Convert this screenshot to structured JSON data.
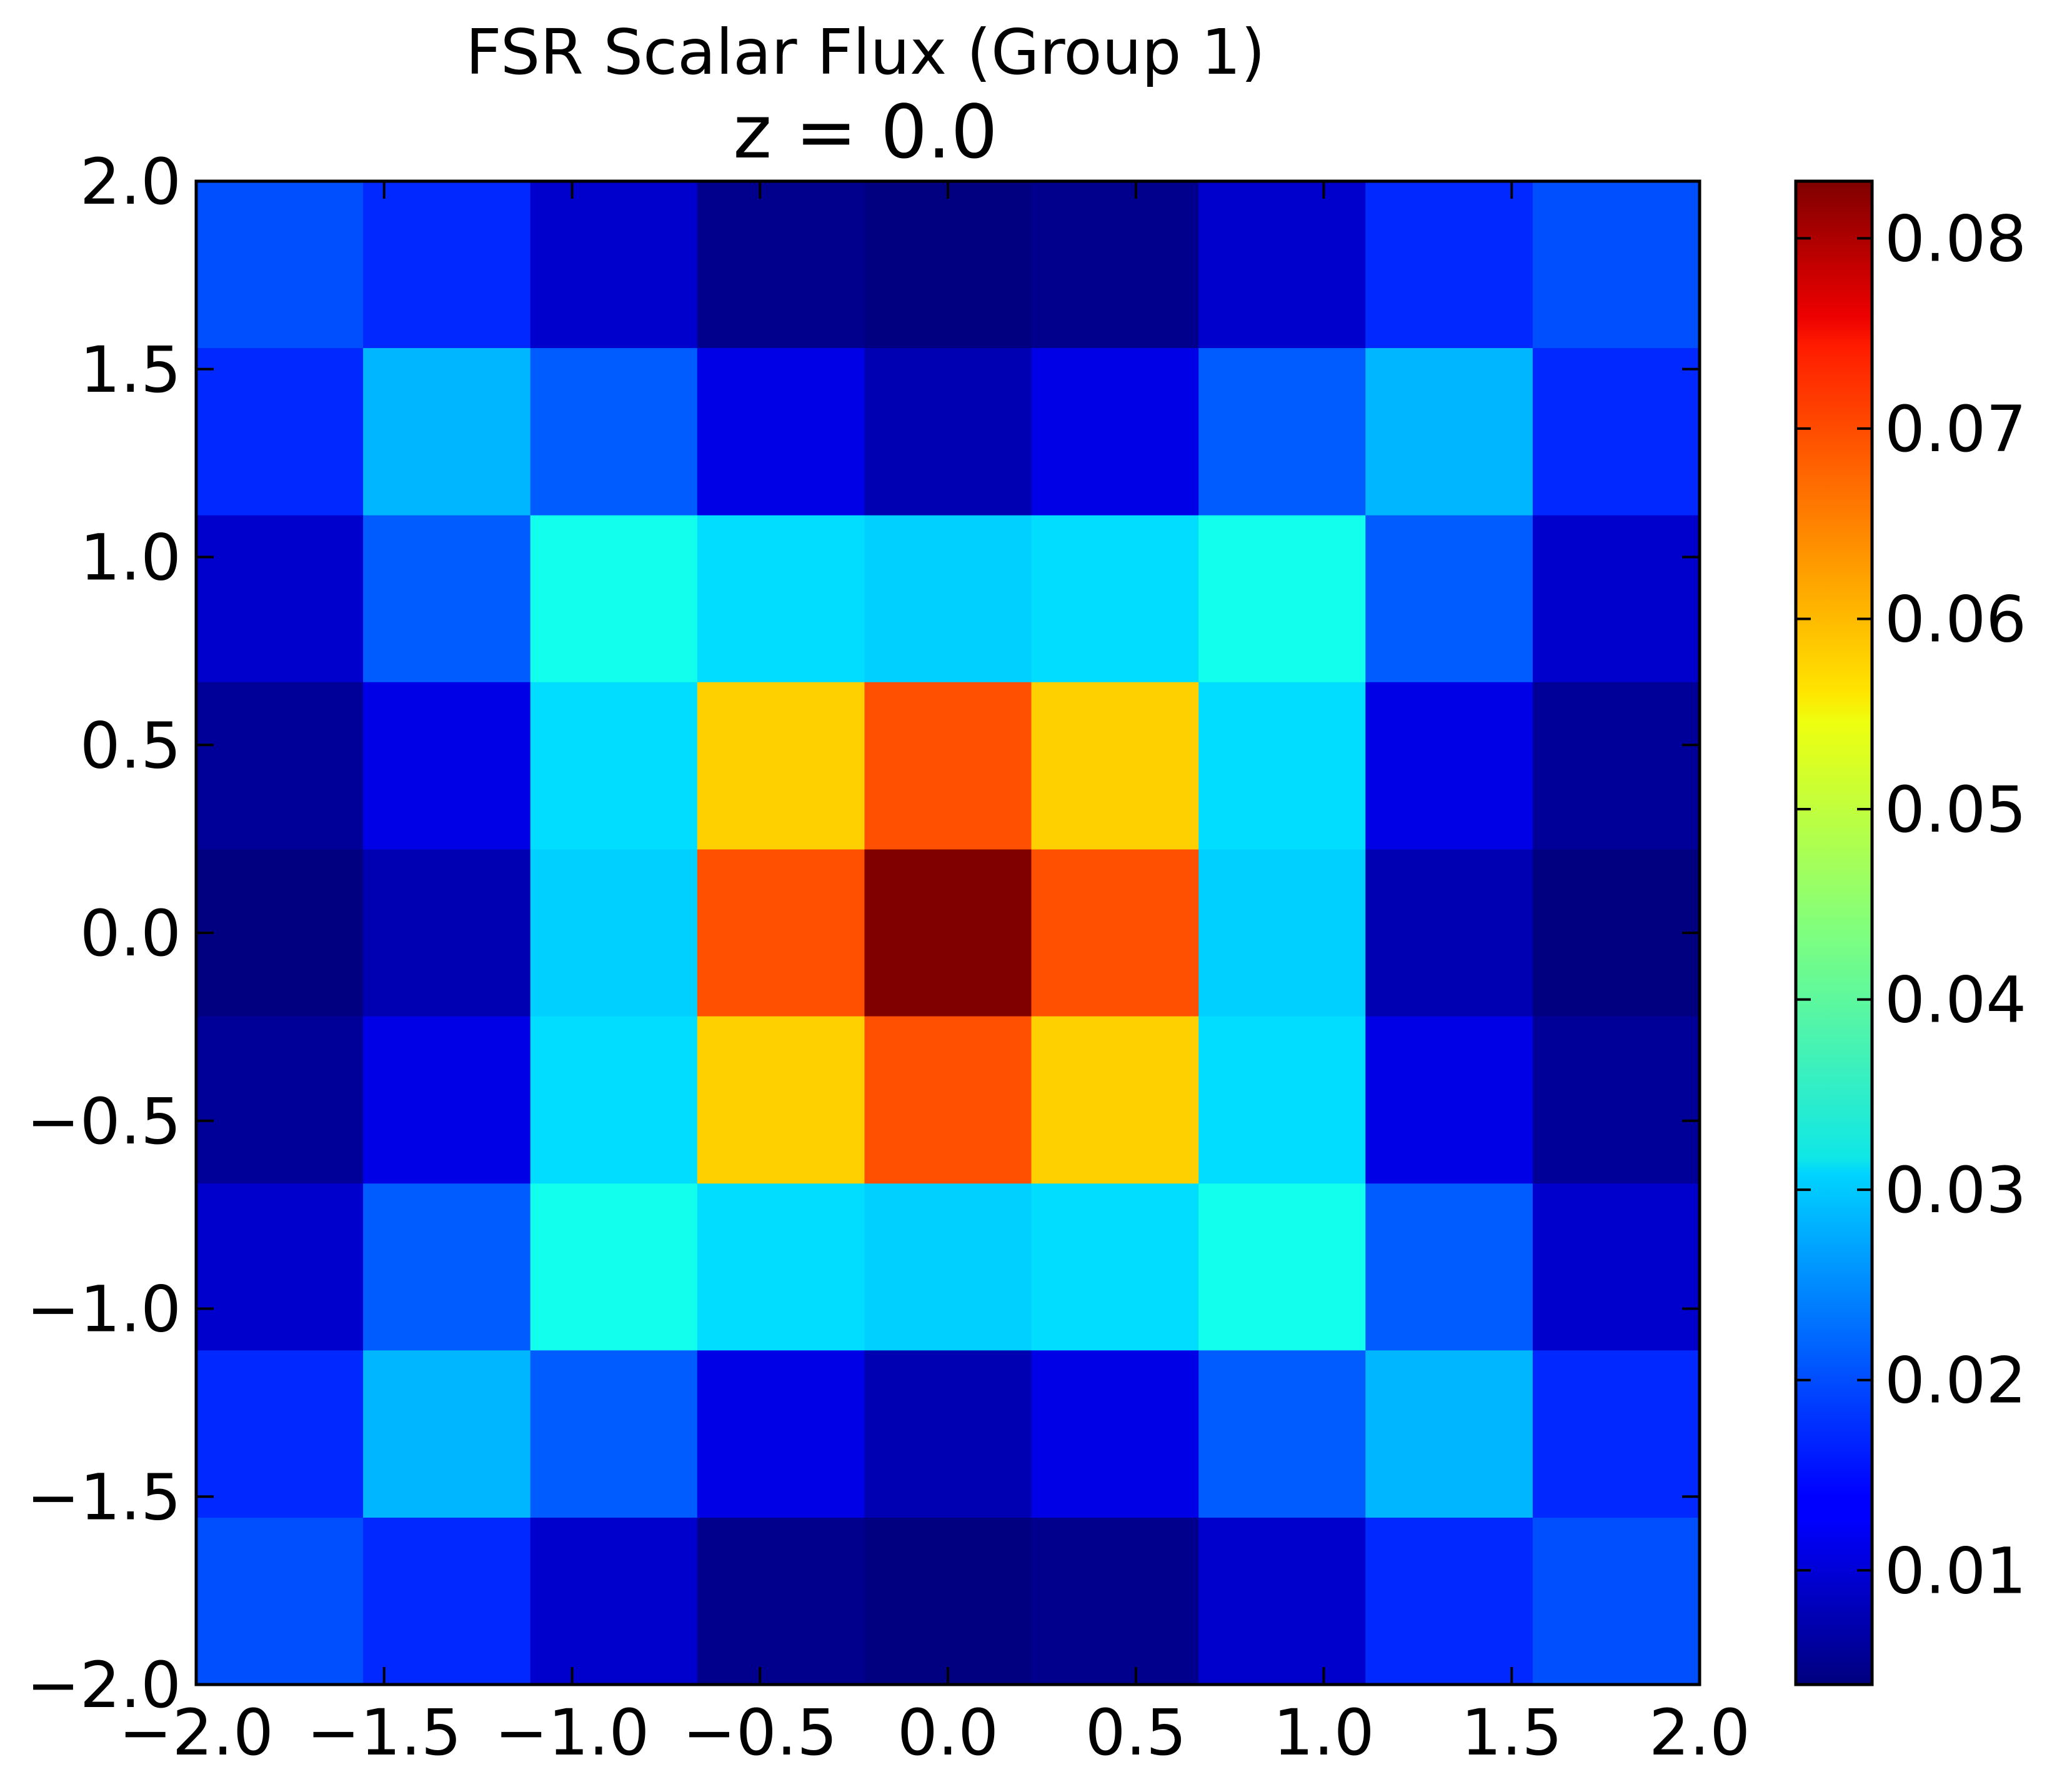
{
  "chart_data": {
    "type": "heatmap",
    "title": "FSR Scalar Flux (Group 1)",
    "subtitle": "z = 0.0",
    "xlabel": "",
    "ylabel": "",
    "xlim": [
      -2.0,
      2.0
    ],
    "ylim": [
      -2.0,
      2.0
    ],
    "x_ticks": [
      "−2.0",
      "−1.5",
      "−1.0",
      "−0.5",
      "0.0",
      "0.5",
      "1.0",
      "1.5",
      "2.0"
    ],
    "y_ticks": [
      "2.0",
      "1.5",
      "1.0",
      "0.5",
      "0.0",
      "−0.5",
      "−1.0",
      "−1.5",
      "−2.0"
    ],
    "x_tick_values": [
      -2.0,
      -1.5,
      -1.0,
      -0.5,
      0.0,
      0.5,
      1.0,
      1.5,
      2.0
    ],
    "y_tick_values": [
      2.0,
      1.5,
      1.0,
      0.5,
      0.0,
      -0.5,
      -1.0,
      -1.5,
      -2.0
    ],
    "x_edges": [
      -2.0,
      -1.556,
      -1.111,
      -0.667,
      -0.222,
      0.222,
      0.667,
      1.111,
      1.556,
      2.0
    ],
    "y_edges": [
      2.0,
      1.556,
      1.111,
      0.667,
      0.222,
      -0.222,
      -0.667,
      -1.111,
      -1.556,
      -2.0
    ],
    "values": [
      [
        0.02,
        0.017,
        0.01,
        0.005,
        0.004,
        0.005,
        0.01,
        0.017,
        0.02
      ],
      [
        0.017,
        0.028,
        0.021,
        0.012,
        0.008,
        0.012,
        0.021,
        0.028,
        0.017
      ],
      [
        0.01,
        0.021,
        0.035,
        0.031,
        0.03,
        0.031,
        0.035,
        0.021,
        0.01
      ],
      [
        0.006,
        0.012,
        0.031,
        0.057,
        0.067,
        0.057,
        0.031,
        0.012,
        0.006
      ],
      [
        0.004,
        0.008,
        0.03,
        0.067,
        0.083,
        0.067,
        0.03,
        0.008,
        0.004
      ],
      [
        0.006,
        0.012,
        0.031,
        0.057,
        0.067,
        0.057,
        0.031,
        0.012,
        0.006
      ],
      [
        0.01,
        0.021,
        0.035,
        0.031,
        0.03,
        0.031,
        0.035,
        0.021,
        0.01
      ],
      [
        0.017,
        0.028,
        0.021,
        0.012,
        0.008,
        0.012,
        0.021,
        0.028,
        0.017
      ],
      [
        0.02,
        0.017,
        0.01,
        0.005,
        0.004,
        0.005,
        0.01,
        0.017,
        0.02
      ]
    ],
    "colormap": "jet",
    "vmin": 0.004,
    "vmax": 0.083,
    "colorbar_ticks": [
      "0.08",
      "0.07",
      "0.06",
      "0.05",
      "0.04",
      "0.03",
      "0.02",
      "0.01"
    ],
    "colorbar_tick_values": [
      0.08,
      0.07,
      0.06,
      0.05,
      0.04,
      0.03,
      0.02,
      0.01
    ],
    "grid": false
  }
}
